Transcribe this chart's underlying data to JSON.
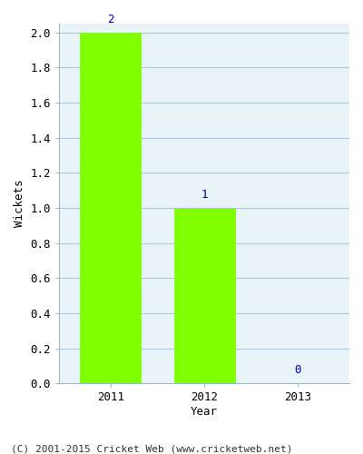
{
  "categories": [
    "2011",
    "2012",
    "2013"
  ],
  "values": [
    2,
    1,
    0
  ],
  "bar_color": "#7fff00",
  "bar_edgecolor": "#7fff00",
  "xlabel": "Year",
  "ylabel": "Wickets",
  "ylim": [
    0.0,
    2.0
  ],
  "yticks": [
    0.0,
    0.2,
    0.4,
    0.6,
    0.8,
    1.0,
    1.2,
    1.4,
    1.6,
    1.8,
    2.0
  ],
  "label_color": "#00008b",
  "label_fontsize": 9,
  "axis_label_fontsize": 9,
  "tick_fontsize": 9,
  "footer_text": "(C) 2001-2015 Cricket Web (www.cricketweb.net)",
  "footer_fontsize": 8,
  "background_color": "#ffffff",
  "plot_bg_color": "#e8f4f8",
  "grid_color": "#b0c8d8",
  "spine_color": "#a0b8c8",
  "bar_width": 0.65
}
